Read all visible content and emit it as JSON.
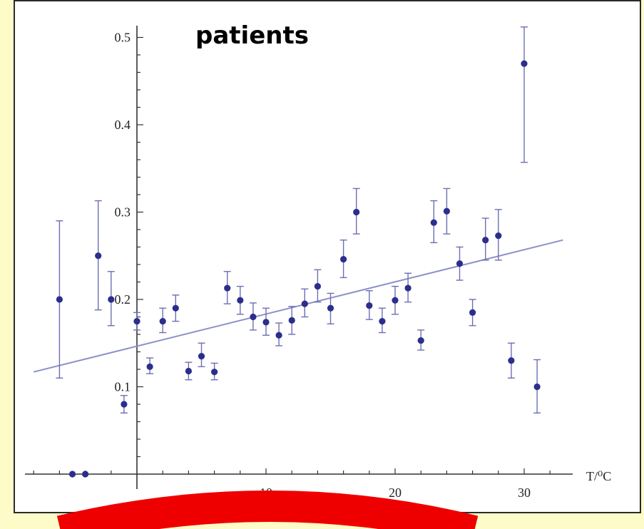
{
  "chart_data": {
    "type": "scatter",
    "title": "patients",
    "xlabel": "T/⁰C",
    "ylabel": "",
    "xlim": [
      -8.5,
      33.5
    ],
    "ylim": [
      0,
      0.515
    ],
    "x_ticks": [
      {
        "value": 10,
        "label": "10"
      },
      {
        "value": 20,
        "label": "20"
      },
      {
        "value": 30,
        "label": "30"
      }
    ],
    "y_ticks": [
      {
        "value": 0.1,
        "label": "0.1"
      },
      {
        "value": 0.2,
        "label": "0.2"
      },
      {
        "value": 0.3,
        "label": "0.3"
      },
      {
        "value": 0.4,
        "label": "0.4"
      },
      {
        "value": 0.5,
        "label": "0.5"
      }
    ],
    "fit_line": {
      "x": [
        -8,
        33
      ],
      "y": [
        0.117,
        0.268
      ]
    },
    "points": [
      {
        "x": -6,
        "y": 0.2,
        "err": [
          0.11,
          0.29
        ]
      },
      {
        "x": -5,
        "y": 0.0
      },
      {
        "x": -4,
        "y": 0.0
      },
      {
        "x": -3,
        "y": 0.25,
        "err": [
          0.188,
          0.313
        ]
      },
      {
        "x": -2,
        "y": 0.2,
        "err": [
          0.17,
          0.232
        ]
      },
      {
        "x": -1,
        "y": 0.08,
        "err": [
          0.07,
          0.09
        ]
      },
      {
        "x": 0,
        "y": 0.175,
        "err": [
          0.165,
          0.185
        ]
      },
      {
        "x": 1,
        "y": 0.123,
        "err": [
          0.115,
          0.133
        ]
      },
      {
        "x": 2,
        "y": 0.175,
        "err": [
          0.162,
          0.19
        ]
      },
      {
        "x": 3,
        "y": 0.19,
        "err": [
          0.175,
          0.205
        ]
      },
      {
        "x": 4,
        "y": 0.118,
        "err": [
          0.108,
          0.128
        ]
      },
      {
        "x": 5,
        "y": 0.135,
        "err": [
          0.123,
          0.15
        ]
      },
      {
        "x": 6,
        "y": 0.117,
        "err": [
          0.108,
          0.127
        ]
      },
      {
        "x": 7,
        "y": 0.213,
        "err": [
          0.195,
          0.232
        ]
      },
      {
        "x": 8,
        "y": 0.199,
        "err": [
          0.183,
          0.215
        ]
      },
      {
        "x": 9,
        "y": 0.18,
        "err": [
          0.165,
          0.196
        ]
      },
      {
        "x": 10,
        "y": 0.174,
        "err": [
          0.159,
          0.19
        ]
      },
      {
        "x": 11,
        "y": 0.159,
        "err": [
          0.147,
          0.173
        ]
      },
      {
        "x": 12,
        "y": 0.176,
        "err": [
          0.16,
          0.192
        ]
      },
      {
        "x": 13,
        "y": 0.195,
        "err": [
          0.18,
          0.212
        ]
      },
      {
        "x": 14,
        "y": 0.215,
        "err": [
          0.197,
          0.234
        ]
      },
      {
        "x": 15,
        "y": 0.19,
        "err": [
          0.172,
          0.207
        ]
      },
      {
        "x": 16,
        "y": 0.246,
        "err": [
          0.225,
          0.268
        ]
      },
      {
        "x": 17,
        "y": 0.3,
        "err": [
          0.275,
          0.327
        ]
      },
      {
        "x": 18,
        "y": 0.193,
        "err": [
          0.177,
          0.21
        ]
      },
      {
        "x": 19,
        "y": 0.175,
        "err": [
          0.162,
          0.19
        ]
      },
      {
        "x": 20,
        "y": 0.199,
        "err": [
          0.183,
          0.215
        ]
      },
      {
        "x": 21,
        "y": 0.213,
        "err": [
          0.197,
          0.23
        ]
      },
      {
        "x": 22,
        "y": 0.153,
        "err": [
          0.142,
          0.165
        ]
      },
      {
        "x": 23,
        "y": 0.288,
        "err": [
          0.265,
          0.313
        ]
      },
      {
        "x": 24,
        "y": 0.301,
        "err": [
          0.275,
          0.327
        ]
      },
      {
        "x": 25,
        "y": 0.241,
        "err": [
          0.222,
          0.26
        ]
      },
      {
        "x": 26,
        "y": 0.185,
        "err": [
          0.17,
          0.2
        ]
      },
      {
        "x": 27,
        "y": 0.268,
        "err": [
          0.245,
          0.293
        ]
      },
      {
        "x": 28,
        "y": 0.273,
        "err": [
          0.245,
          0.303
        ]
      },
      {
        "x": 29,
        "y": 0.13,
        "err": [
          0.11,
          0.15
        ]
      },
      {
        "x": 30,
        "y": 0.47,
        "err": [
          0.357,
          0.512
        ]
      },
      {
        "x": 31,
        "y": 0.1,
        "err": [
          0.07,
          0.131
        ]
      }
    ],
    "colors": {
      "points": "#2b2e8c",
      "error_bars": "#6d6fb3",
      "fit_line": "#8c90c9",
      "axes": "#333333"
    },
    "grid": false
  },
  "colors": {
    "slide_background": "#fdfbc7",
    "decoration_arc": "#ee0000"
  }
}
